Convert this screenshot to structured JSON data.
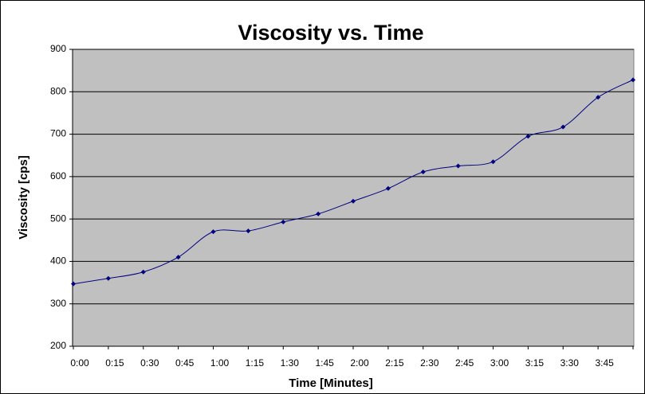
{
  "chart_data": {
    "type": "line",
    "title": "Viscosity vs. Time",
    "x_label": "Time [Minutes]",
    "y_label": "Viscosity [cps]",
    "categories": [
      "0:00",
      "0:15",
      "0:30",
      "0:45",
      "1:00",
      "1:15",
      "1:30",
      "1:45",
      "2:00",
      "2:15",
      "2:30",
      "2:45",
      "3:00",
      "3:15",
      "3:30",
      "3:45",
      null
    ],
    "series": [
      {
        "name": "Viscosity",
        "color": "#000080",
        "values": [
          347,
          360,
          375,
          410,
          470,
          472,
          493,
          512,
          542,
          572,
          611,
          625,
          635,
          695,
          717,
          787,
          828
        ]
      }
    ],
    "ylim": [
      200,
      900
    ],
    "yticks": [
      200,
      300,
      400,
      500,
      600,
      700,
      800,
      900
    ],
    "grid": true,
    "plot_background": "#c0c0c0"
  }
}
